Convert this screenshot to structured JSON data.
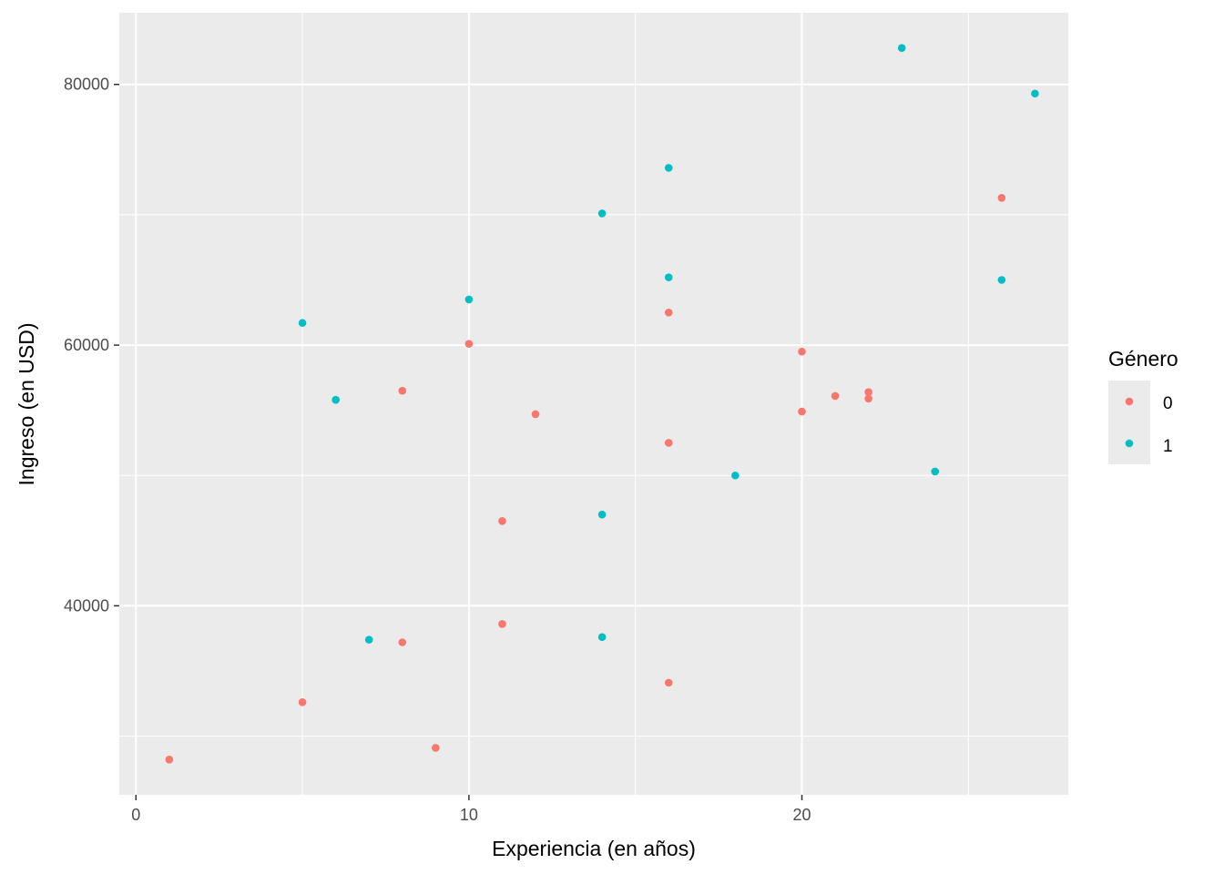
{
  "chart_data": {
    "type": "scatter",
    "title": "",
    "xlabel": "Experiencia (en años)",
    "ylabel": "Ingreso (en USD)",
    "xlim": [
      -0.5,
      28
    ],
    "ylim": [
      25500,
      85500
    ],
    "x_major_ticks": [
      0,
      10,
      20
    ],
    "x_minor_ticks": [
      5,
      15,
      25
    ],
    "y_major_ticks": [
      40000,
      60000,
      80000
    ],
    "y_minor_ticks": [
      30000,
      50000,
      70000
    ],
    "x_tick_labels": [
      "0",
      "10",
      "20"
    ],
    "y_tick_labels": [
      "40000",
      "60000",
      "80000"
    ],
    "grid": true,
    "legend": {
      "title": "Género",
      "position": "right"
    },
    "series": [
      {
        "name": "0",
        "color": "#F8766D",
        "points": [
          {
            "x": 1,
            "y": 28200
          },
          {
            "x": 5,
            "y": 32600
          },
          {
            "x": 8,
            "y": 56500
          },
          {
            "x": 8,
            "y": 37200
          },
          {
            "x": 9,
            "y": 29100
          },
          {
            "x": 10,
            "y": 60100
          },
          {
            "x": 11,
            "y": 46500
          },
          {
            "x": 11,
            "y": 38600
          },
          {
            "x": 12,
            "y": 54700
          },
          {
            "x": 16,
            "y": 62500
          },
          {
            "x": 16,
            "y": 52500
          },
          {
            "x": 16,
            "y": 34100
          },
          {
            "x": 20,
            "y": 59500
          },
          {
            "x": 20,
            "y": 54900
          },
          {
            "x": 21,
            "y": 56100
          },
          {
            "x": 22,
            "y": 56400
          },
          {
            "x": 22,
            "y": 55900
          },
          {
            "x": 26,
            "y": 71300
          }
        ]
      },
      {
        "name": "1",
        "color": "#00BFC4",
        "points": [
          {
            "x": 5,
            "y": 61700
          },
          {
            "x": 6,
            "y": 55800
          },
          {
            "x": 7,
            "y": 37400
          },
          {
            "x": 10,
            "y": 63500
          },
          {
            "x": 14,
            "y": 70100
          },
          {
            "x": 14,
            "y": 47000
          },
          {
            "x": 14,
            "y": 37600
          },
          {
            "x": 16,
            "y": 73600
          },
          {
            "x": 16,
            "y": 65200
          },
          {
            "x": 18,
            "y": 50000
          },
          {
            "x": 23,
            "y": 82800
          },
          {
            "x": 24,
            "y": 50300
          },
          {
            "x": 26,
            "y": 65000
          },
          {
            "x": 27,
            "y": 79300
          }
        ]
      }
    ]
  }
}
